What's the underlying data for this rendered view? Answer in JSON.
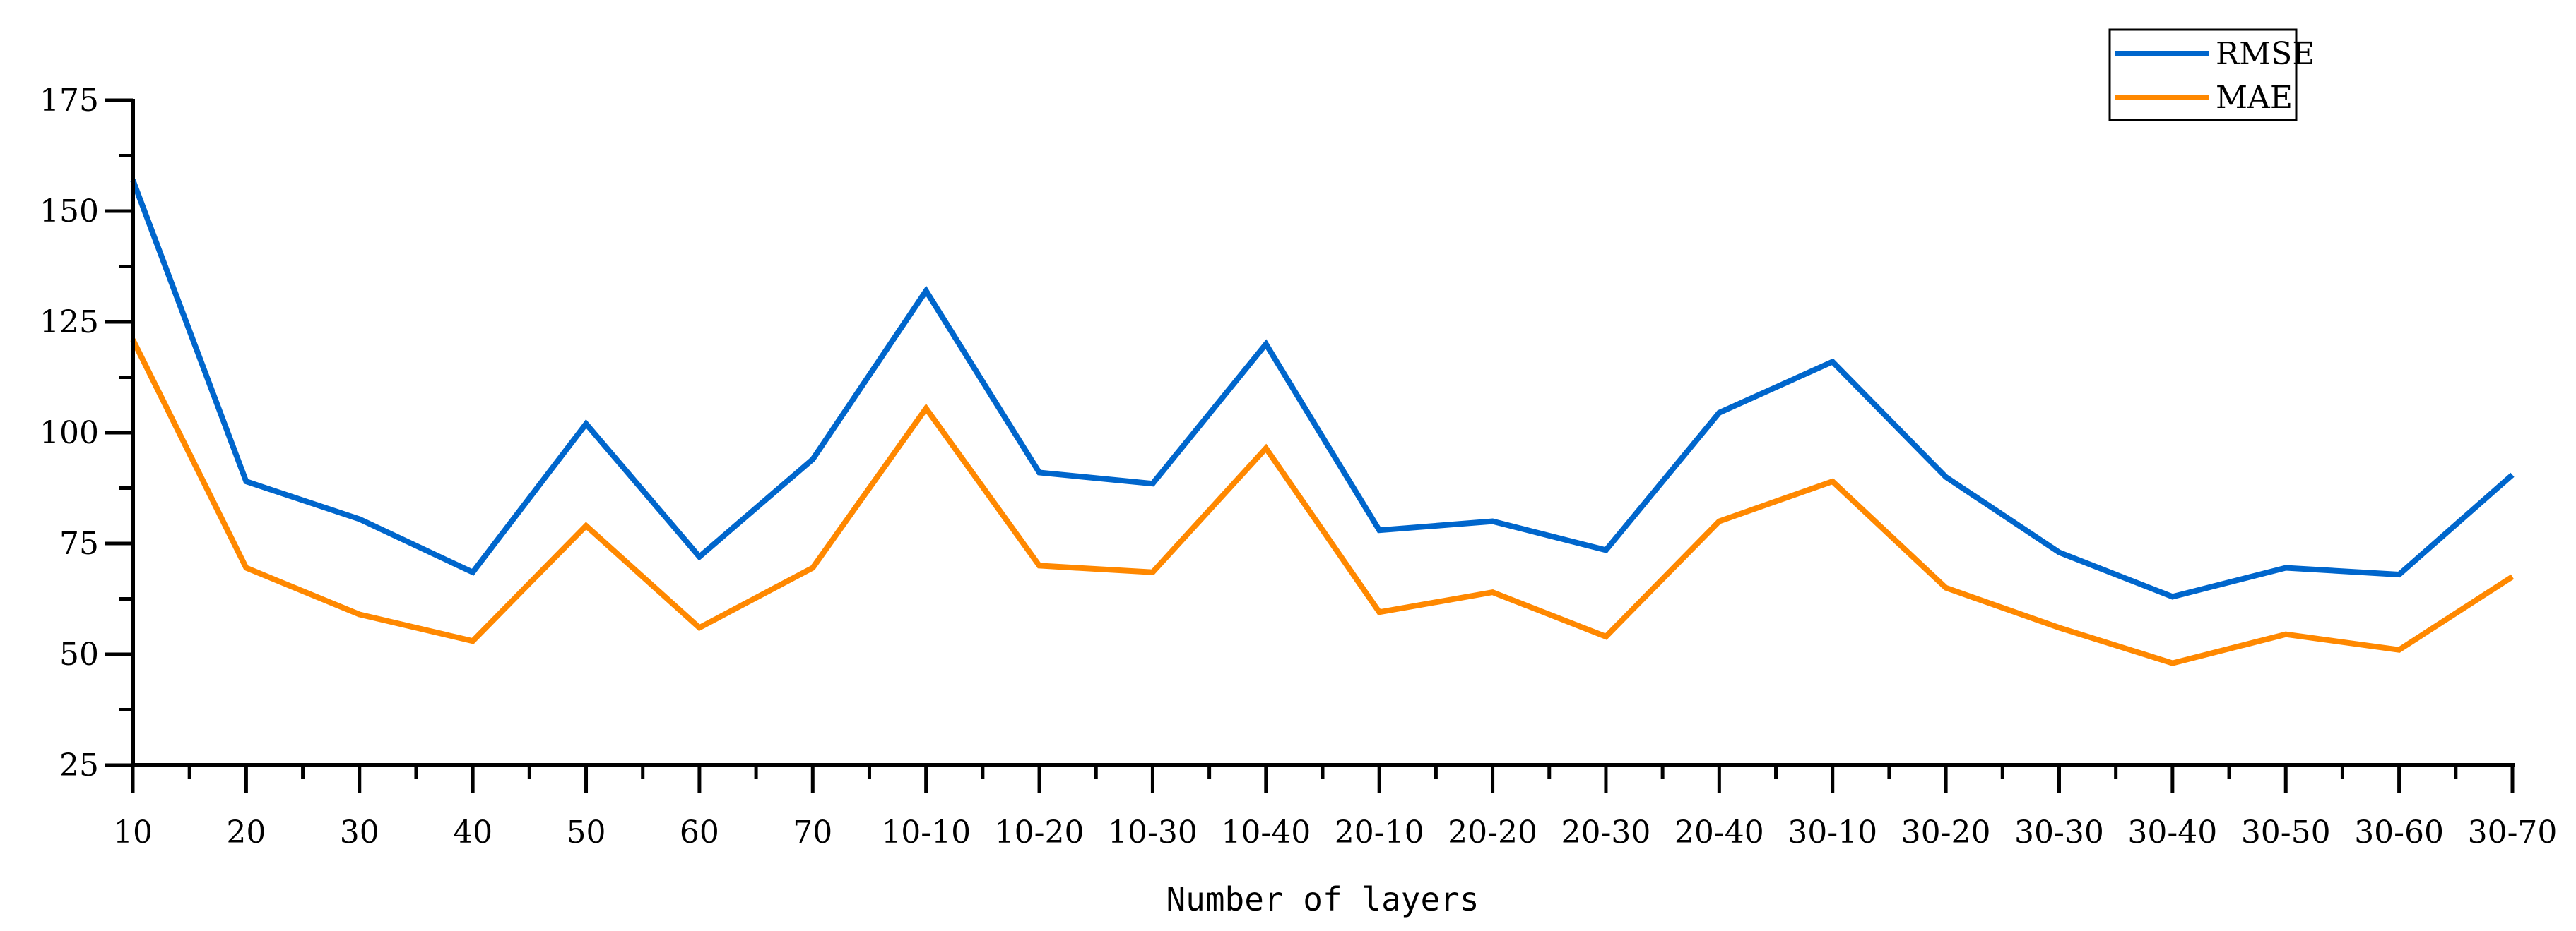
{
  "chart_data": {
    "type": "line",
    "title": "",
    "xlabel": "Number of layers",
    "ylabel": "",
    "categories": [
      "10",
      "20",
      "30",
      "40",
      "50",
      "60",
      "70",
      "10-10",
      "10-20",
      "10-30",
      "10-40",
      "20-10",
      "20-20",
      "20-30",
      "20-40",
      "30-10",
      "30-20",
      "30-30",
      "30-40",
      "30-50",
      "30-60",
      "30-70"
    ],
    "yticks": [
      "25",
      "50",
      "75",
      "100",
      "125",
      "150",
      "175"
    ],
    "ylim": [
      25,
      175
    ],
    "grid": false,
    "legend_position": "top-right",
    "series": [
      {
        "name": "RMSE",
        "color": "#0066CC",
        "values": [
          157,
          89,
          80.5,
          68.5,
          102,
          72,
          94,
          132,
          91,
          88.5,
          120,
          78,
          80,
          73.5,
          104.5,
          116,
          90,
          73,
          63,
          69.5,
          68,
          90.5
        ]
      },
      {
        "name": "MAE",
        "color": "#FF8800",
        "values": [
          121,
          69.5,
          59,
          53,
          79,
          56,
          69.5,
          105.5,
          70,
          68.5,
          96.5,
          59.5,
          64,
          54,
          80,
          89,
          65,
          56,
          48,
          54.5,
          51,
          67.5
        ]
      }
    ]
  }
}
